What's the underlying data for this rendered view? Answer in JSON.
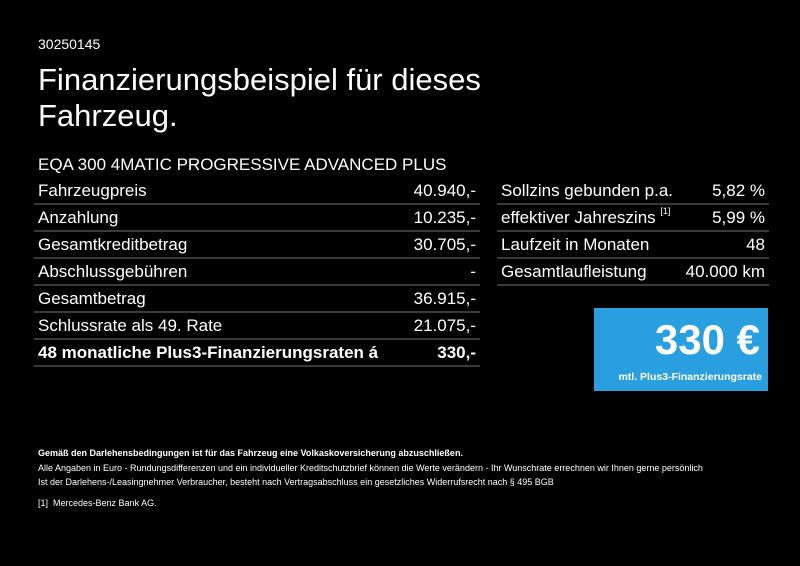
{
  "code": "30250145",
  "title": "Finanzierungsbeispiel für dieses Fahrzeug.",
  "model": "EQA 300 4MATIC PROGRESSIVE ADVANCED PLUS",
  "left_rows": [
    {
      "label": "Fahrzeugpreis",
      "value": "40.940,-"
    },
    {
      "label": "Anzahlung",
      "value": "10.235,-"
    },
    {
      "label": "Gesamtkreditbetrag",
      "value": "30.705,-"
    },
    {
      "label": "Abschlussgebühren",
      "value": "-"
    },
    {
      "label": "Gesamtbetrag",
      "value": "36.915,-"
    },
    {
      "label": "Schlussrate als 49. Rate",
      "value": "21.075,-"
    },
    {
      "label": "48 monatliche Plus3-Finanzierungsraten á",
      "value": "330,-"
    }
  ],
  "right_rows": [
    {
      "label": "Sollzins gebunden p.a.",
      "value": "5,82 %"
    },
    {
      "label": "effektiver Jahreszins",
      "sup": "[1]",
      "value": "5,99 %"
    },
    {
      "label": "Laufzeit in Monaten",
      "value": "48"
    },
    {
      "label": "Gesamtlaufleistung",
      "value": "40.000 km"
    }
  ],
  "rate_box": {
    "amount": "330 €",
    "label": "mtl. Plus3-Finanzierungsrate",
    "color": "#2a9fe0"
  },
  "footer": {
    "bold": "Gemäß den Darlehensbedingungen ist für das Fahrzeug eine Volkaskoversicherung abzuschließen.",
    "line1": "Alle Angaben in Euro - Rundungsdifferenzen und ein individueller Kreditschutzbrief können die Werte verändern - Ihr Wunschrate errechnen wir Ihnen gerne persönlich",
    "line2": "Ist der Darlehens-/Leasingnehmer Verbraucher, besteht nach Vertragsabschluss ein gesetzliches Widerrufsrecht nach § 495 BGB",
    "note_marker": "[1]",
    "note": "Mercedes-Benz Bank AG."
  }
}
